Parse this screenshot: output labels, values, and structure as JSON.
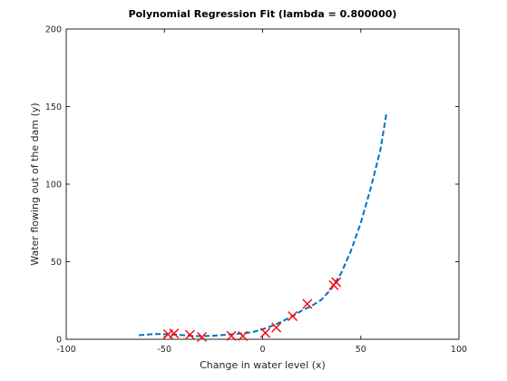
{
  "chart_data": {
    "type": "scatter",
    "title": "Polynomial Regression Fit (lambda = 0.800000)",
    "xlabel": "Change in water level (x)",
    "ylabel": "Water flowing out of the dam (y)",
    "xlim": [
      -100,
      100
    ],
    "ylim": [
      0,
      200
    ],
    "xticks": [
      "-100",
      "-50",
      "0",
      "50",
      "100"
    ],
    "yticks": [
      "0",
      "50",
      "100",
      "150",
      "200"
    ],
    "grid": false,
    "legend": "none",
    "series": [
      {
        "kind": "scatter",
        "marker": "x",
        "color": "#ff0000",
        "points": [
          [
            -48.1,
            3.2
          ],
          [
            -45.1,
            3.7
          ],
          [
            -37.0,
            2.9
          ],
          [
            -30.9,
            1.5
          ],
          [
            -15.9,
            2.2
          ],
          [
            -10.1,
            2.1
          ],
          [
            1.4,
            4.2
          ],
          [
            7.0,
            7.6
          ],
          [
            15.3,
            14.9
          ],
          [
            22.8,
            22.8
          ],
          [
            36.2,
            34.9
          ],
          [
            37.5,
            36.8
          ]
        ]
      },
      {
        "kind": "line",
        "style": "dashed",
        "color": "#0072bd",
        "points": [
          [
            -63,
            2.6
          ],
          [
            -55,
            3.4
          ],
          [
            -50,
            3.3
          ],
          [
            -45,
            3.0
          ],
          [
            -40,
            2.6
          ],
          [
            -35,
            2.1
          ],
          [
            -30,
            2.0
          ],
          [
            -25,
            2.3
          ],
          [
            -20,
            2.8
          ],
          [
            -15,
            3.3
          ],
          [
            -10,
            3.8
          ],
          [
            -5,
            4.6
          ],
          [
            0,
            6.4
          ],
          [
            5,
            8.7
          ],
          [
            10,
            11.5
          ],
          [
            15,
            14.7
          ],
          [
            20,
            18.5
          ],
          [
            25,
            21.5
          ],
          [
            30,
            25.5
          ],
          [
            35,
            32.5
          ],
          [
            40,
            42.5
          ],
          [
            45,
            57.0
          ],
          [
            50,
            75.0
          ],
          [
            55,
            97.0
          ],
          [
            60,
            122.0
          ],
          [
            63,
            145.0
          ]
        ]
      }
    ]
  }
}
